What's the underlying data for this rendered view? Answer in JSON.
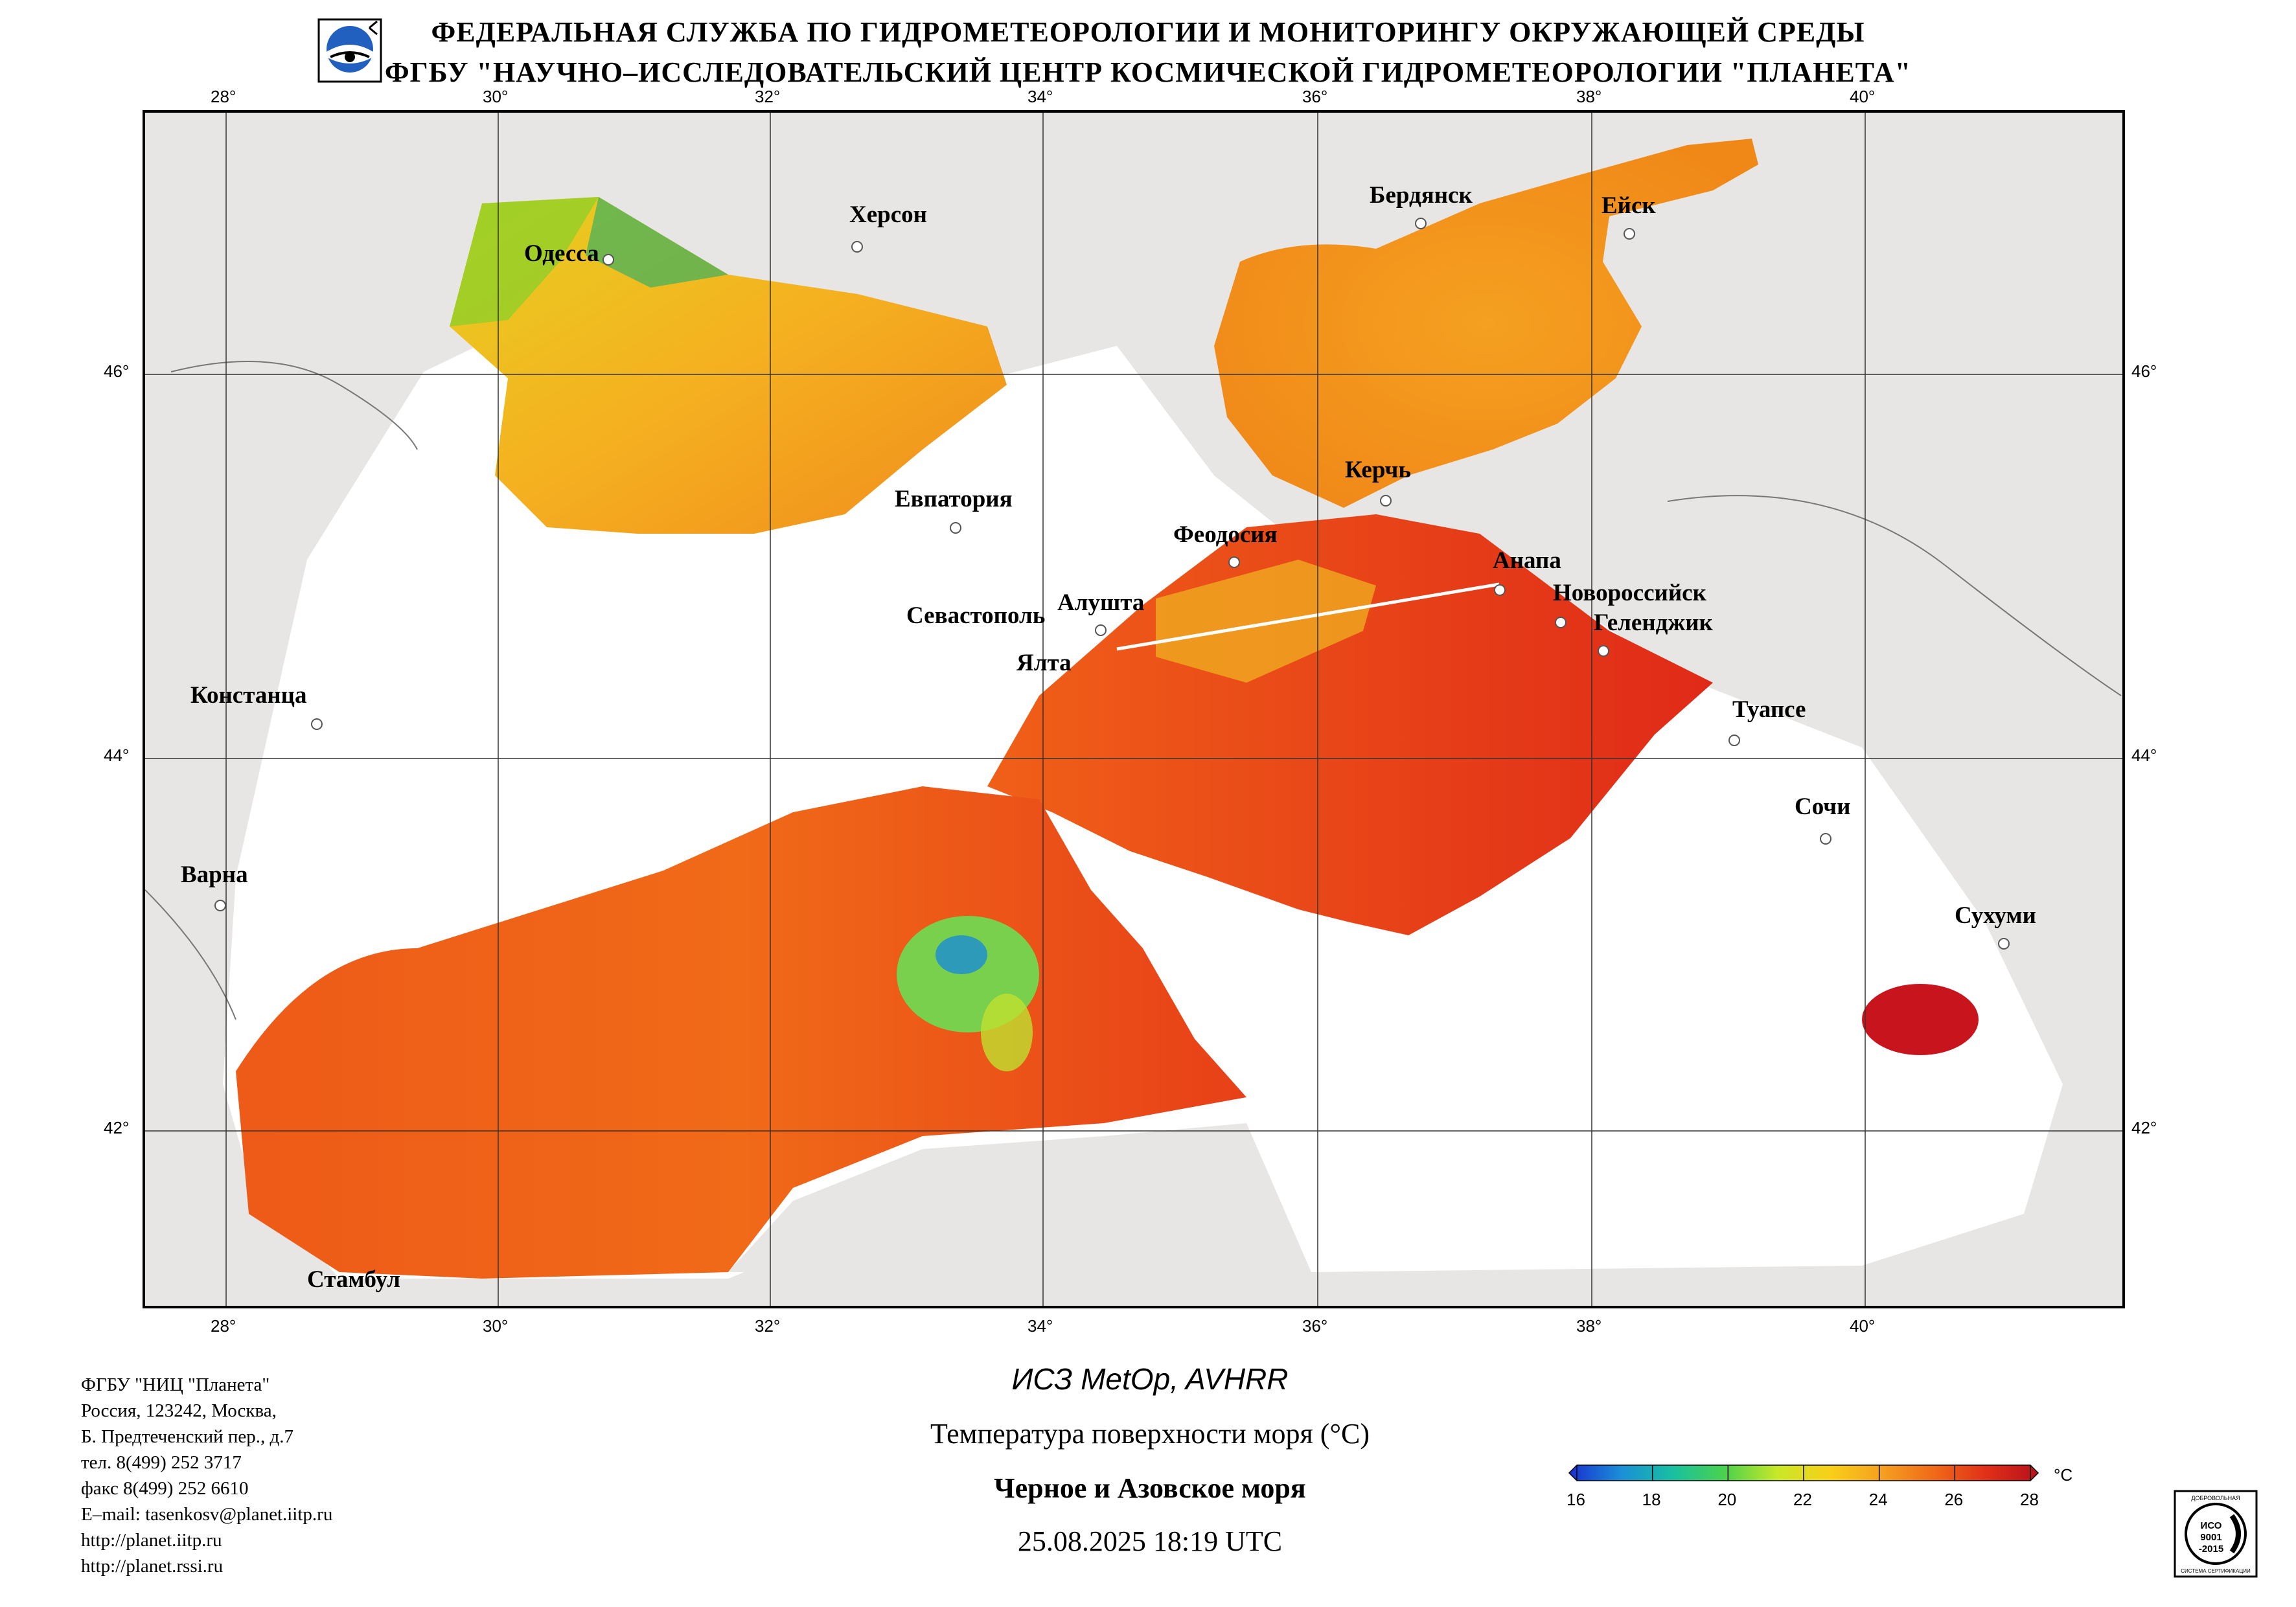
{
  "header": {
    "line1": "ФЕДЕРАЛЬНАЯ СЛУЖБА ПО ГИДРОМЕТЕОРОЛОГИИ И МОНИТОРИНГУ ОКРУЖАЮЩЕЙ СРЕДЫ",
    "line2": "ФГБУ \"НАУЧНО–ИССЛЕДОВАТЕЛЬСКИЙ ЦЕНТР КОСМИЧЕСКОЙ ГИДРОМЕТЕОРОЛОГИИ \"ПЛАНЕТА\""
  },
  "logo_icon": "planeta-logo-icon",
  "map": {
    "lon_ticks": [
      "28°",
      "30°",
      "32°",
      "34°",
      "36°",
      "38°",
      "40°"
    ],
    "lat_ticks": [
      "46°",
      "44°",
      "42°"
    ],
    "cities": [
      {
        "name": "Одесса"
      },
      {
        "name": "Херсон"
      },
      {
        "name": "Бердянск"
      },
      {
        "name": "Ейск"
      },
      {
        "name": "Евпатория"
      },
      {
        "name": "Керчь"
      },
      {
        "name": "Феодосия"
      },
      {
        "name": "Анапа"
      },
      {
        "name": "Новороссийск"
      },
      {
        "name": "Геленджик"
      },
      {
        "name": "Севастополь"
      },
      {
        "name": "Алушта"
      },
      {
        "name": "Ялта"
      },
      {
        "name": "Констанца"
      },
      {
        "name": "Туапсе"
      },
      {
        "name": "Сочи"
      },
      {
        "name": "Варна"
      },
      {
        "name": "Сухуми"
      },
      {
        "name": "Стамбул"
      }
    ],
    "colors": {
      "land": "#e8e6e4",
      "no_data": "#ffffff",
      "hot": "#e8301a",
      "warm": "#f07818",
      "mild": "#f5a820",
      "cool": "#e6e020",
      "cold": "#2fb45a"
    }
  },
  "info": {
    "lines": [
      "ФГБУ \"НИЦ \"Планета\"",
      "Россия, 123242, Москва,",
      "Б. Предтеченский пер., д.7",
      "тел. 8(499) 252 3717",
      "факс 8(499) 252 6610",
      "E–mail: tasenkosv@planet.iitp.ru",
      "http://planet.iitp.ru",
      "http://planet.rssi.ru"
    ]
  },
  "product": {
    "satellite": "ИСЗ MetOp, AVHRR",
    "parameter": "Температура поверхности моря (°C)",
    "region": "Черное и Азовское моря",
    "datetime": "25.08.2025 18:19 UTC"
  },
  "colorbar": {
    "ticks": [
      "16",
      "18",
      "20",
      "22",
      "24",
      "26",
      "28"
    ],
    "unit": "°C",
    "stops": [
      "#1a2fd0",
      "#1a8fd8",
      "#18c0a0",
      "#4cd24c",
      "#c8e828",
      "#f8d018",
      "#f5a020",
      "#f06a18",
      "#e03018",
      "#b8101c"
    ]
  },
  "certificate": {
    "top": "ДОБРОВОЛЬНАЯ",
    "iso": "ИСО",
    "number": "9001",
    "year": "-2015",
    "bottom": "СИСТЕМА СЕРТИФИКАЦИИ"
  }
}
